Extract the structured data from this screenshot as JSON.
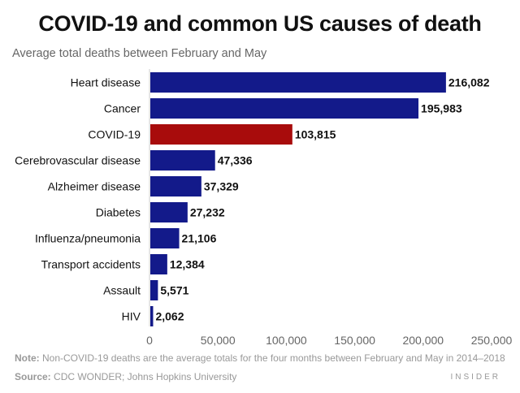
{
  "title": "COVID-19 and common US causes of death",
  "subtitle": "Average total deaths between February and May",
  "note_label": "Note:",
  "note_text": " Non-COVID-19 deaths are the average totals for the four months between February and May in 2014–2018",
  "source_label": "Source:",
  "source_text": " CDC WONDER; Johns Hopkins University",
  "brand": "INSIDER",
  "colors": {
    "default_bar": "#131a8a",
    "highlight_bar": "#a80c0c",
    "axis": "#cccccc",
    "tick_text": "#666666"
  },
  "chart_data": {
    "type": "bar",
    "orientation": "horizontal",
    "title": "COVID-19 and common US causes of death",
    "subtitle": "Average total deaths between February and May",
    "xlabel": "",
    "ylabel": "",
    "xlim": [
      0,
      250000
    ],
    "ticks": [
      0,
      50000,
      100000,
      150000,
      200000,
      250000
    ],
    "tick_labels": [
      "0",
      "50,000",
      "100,000",
      "150,000",
      "200,000",
      "250,000"
    ],
    "grid": false,
    "highlight": "COVID-19",
    "categories": [
      "Heart disease",
      "Cancer",
      "COVID-19",
      "Cerebrovascular disease",
      "Alzheimer disease",
      "Diabetes",
      "Influenza/pneumonia",
      "Transport accidents",
      "Assault",
      "HIV"
    ],
    "values": [
      216082,
      195983,
      103815,
      47336,
      37329,
      27232,
      21106,
      12384,
      5571,
      2062
    ],
    "value_labels": [
      "216,082",
      "195,983",
      "103,815",
      "47,336",
      "37,329",
      "27,232",
      "21,106",
      "12,384",
      "5,571",
      "2,062"
    ]
  }
}
